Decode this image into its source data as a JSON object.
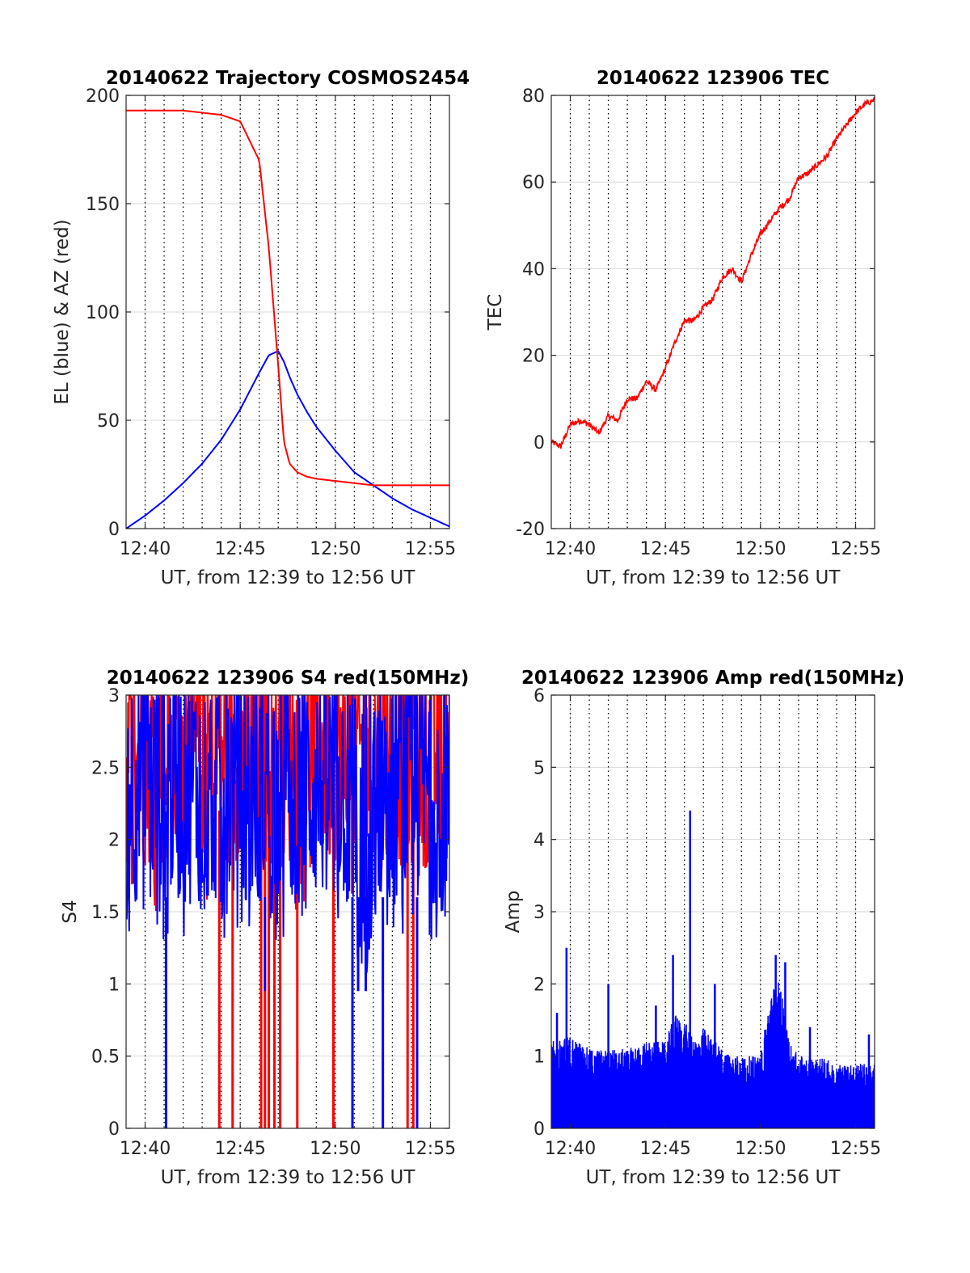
{
  "figure": {
    "shared_xlabel": "UT, from 12:39 to 12:56 UT",
    "x_tick_labels": [
      "12:40",
      "12:45",
      "12:50",
      "12:55"
    ],
    "colors": {
      "red": "#ff0000",
      "blue": "#0000ff",
      "grid": "#d9d9d9",
      "dotted": "#000000"
    }
  },
  "chart_data": [
    {
      "type": "line",
      "title": "20140622 Trajectory COSMOS2454",
      "xlabel": "UT, from 12:39 to 12:56 UT",
      "ylabel": "EL (blue) & AZ (red)",
      "xlim": [
        0,
        17
      ],
      "ylim": [
        0,
        200
      ],
      "yticks": [
        0,
        50,
        100,
        150,
        200
      ],
      "x_tick_labels": [
        "12:40",
        "12:45",
        "12:50",
        "12:55"
      ],
      "x_tick_minutes": [
        1,
        6,
        11,
        16
      ],
      "dotted_vertical_lines_minutes": [
        2,
        3,
        4,
        5,
        7,
        8,
        9,
        10,
        12,
        13,
        14,
        15
      ],
      "grid": true,
      "x": [
        0,
        1,
        2,
        3,
        4,
        5,
        6,
        7,
        7.5,
        8,
        8.3,
        8.6,
        8.8,
        9,
        9.5,
        10,
        11,
        12,
        13,
        14,
        15,
        16,
        17
      ],
      "series": [
        {
          "color": "#0000ff",
          "values": [
            0,
            6,
            13,
            21,
            30,
            41,
            55,
            72,
            80,
            82,
            77,
            70,
            66,
            62,
            54,
            47,
            36,
            26,
            20,
            14,
            9,
            5,
            1
          ]
        },
        {
          "color": "#ff0000",
          "values": [
            193,
            193,
            193,
            193,
            192,
            191,
            188,
            170,
            130,
            75,
            40,
            30,
            28,
            26,
            24,
            23,
            22,
            21,
            20,
            20,
            20,
            20,
            20
          ]
        }
      ]
    },
    {
      "type": "line",
      "title": "20140622 123906 TEC",
      "xlabel": "UT, from 12:39 to 12:56 UT",
      "ylabel": "TEC",
      "xlim": [
        0,
        17
      ],
      "ylim": [
        -20,
        80
      ],
      "yticks": [
        -20,
        0,
        20,
        40,
        60,
        80
      ],
      "x_tick_labels": [
        "12:40",
        "12:45",
        "12:50",
        "12:55"
      ],
      "x_tick_minutes": [
        1,
        6,
        11,
        16
      ],
      "dotted_vertical_lines_minutes": [
        2,
        3,
        4,
        5,
        7,
        8,
        9,
        10,
        12,
        13,
        14,
        15
      ],
      "grid": true,
      "x": [
        0,
        0.5,
        1,
        1.5,
        2,
        2.5,
        3,
        3.5,
        4,
        4.5,
        5,
        5.5,
        6,
        6.5,
        7,
        7.5,
        8,
        8.5,
        9,
        9.5,
        10,
        10.5,
        11,
        11.5,
        12,
        12.5,
        13,
        13.5,
        14,
        14.5,
        15,
        15.5,
        16,
        16.5,
        17
      ],
      "series": [
        {
          "color": "#ff0000",
          "values": [
            0,
            -1,
            4,
            5,
            4,
            2,
            6,
            5,
            10,
            10,
            14,
            12,
            17,
            23,
            28,
            28,
            31,
            33,
            38,
            40,
            37,
            43,
            48,
            51,
            54,
            56,
            61,
            62,
            64,
            66,
            70,
            73,
            76,
            78,
            79
          ]
        }
      ]
    },
    {
      "type": "line",
      "title": "20140622 123906 S4 red(150MHz)",
      "xlabel": "UT, from 12:39 to 12:56 UT",
      "ylabel": "S4",
      "xlim": [
        0,
        17
      ],
      "ylim": [
        0,
        3
      ],
      "yticks": [
        0,
        0.5,
        1,
        1.5,
        2,
        2.5,
        3
      ],
      "x_tick_labels": [
        "12:40",
        "12:45",
        "12:50",
        "12:55"
      ],
      "x_tick_minutes": [
        1,
        6,
        11,
        16
      ],
      "dotted_vertical_lines_minutes": [
        2,
        3,
        4,
        5,
        7,
        8,
        9,
        10,
        12,
        13,
        14,
        15
      ],
      "grid": true,
      "series": [
        {
          "color": "#ff0000",
          "values_description_range": [
            0,
            3
          ]
        },
        {
          "color": "#0000ff",
          "values_description_range": [
            0.9,
            3
          ]
        }
      ],
      "red_drops_to_zero_minutes": [
        4.9,
        5.6,
        7.1,
        7.3,
        7.5,
        7.8,
        8.1,
        9.0,
        10.9,
        14.8,
        15.1
      ],
      "blue_drops_to_zero_minutes": [
        2.1,
        11.9,
        13.5,
        15.3
      ],
      "blue_dips_near_1_minutes": [
        7.3,
        12.2,
        12.6
      ]
    },
    {
      "type": "line",
      "title": "20140622 123906 Amp red(150MHz)",
      "xlabel": "UT, from 12:39 to 12:56 UT",
      "ylabel": "Amp",
      "xlim": [
        0,
        17
      ],
      "ylim": [
        0,
        6
      ],
      "yticks": [
        0,
        1,
        2,
        3,
        4,
        5,
        6
      ],
      "x_tick_labels": [
        "12:40",
        "12:45",
        "12:50",
        "12:55"
      ],
      "x_tick_minutes": [
        1,
        6,
        11,
        16
      ],
      "dotted_vertical_lines_minutes": [
        2,
        3,
        4,
        5,
        7,
        8,
        9,
        10,
        12,
        13,
        14,
        15
      ],
      "grid": true,
      "series": [
        {
          "color": "#0000ff",
          "envelope_x": [
            0,
            1,
            2,
            3,
            4,
            5,
            6,
            6.5,
            7,
            7.5,
            8,
            9,
            10,
            11,
            11.5,
            12,
            12.5,
            13,
            14,
            15,
            16,
            17
          ],
          "envelope_values": [
            1.2,
            1.3,
            1.1,
            1.1,
            1.1,
            1.2,
            1.2,
            1.6,
            1.5,
            1.2,
            1.4,
            1.1,
            1.0,
            1.0,
            1.9,
            2.1,
            1.2,
            1.0,
            1.0,
            0.9,
            0.9,
            0.9
          ]
        }
      ],
      "spikes": [
        {
          "x": 0.3,
          "value": 1.6
        },
        {
          "x": 0.8,
          "value": 2.5
        },
        {
          "x": 3.0,
          "value": 2.0
        },
        {
          "x": 5.5,
          "value": 1.7
        },
        {
          "x": 6.4,
          "value": 2.4
        },
        {
          "x": 7.3,
          "value": 4.4
        },
        {
          "x": 8.6,
          "value": 2.0
        },
        {
          "x": 11.8,
          "value": 2.4
        },
        {
          "x": 12.3,
          "value": 2.3
        },
        {
          "x": 13.6,
          "value": 1.4
        },
        {
          "x": 16.7,
          "value": 1.3
        }
      ]
    }
  ]
}
